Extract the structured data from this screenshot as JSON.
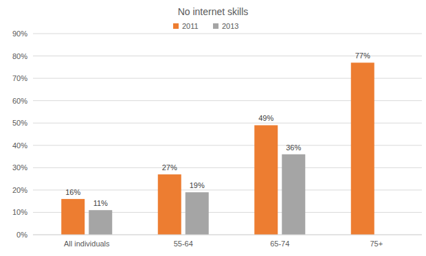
{
  "chart_data": {
    "type": "bar",
    "title": "No internet skills",
    "categories": [
      "All individuals",
      "55-64",
      "65-74",
      "75+"
    ],
    "series": [
      {
        "name": "2011",
        "color": "#ed7d31",
        "values": [
          16,
          27,
          49,
          77
        ],
        "value_labels": [
          "16%",
          "27%",
          "49%",
          "77%"
        ]
      },
      {
        "name": "2013",
        "color": "#a5a5a5",
        "values": [
          11,
          19,
          36,
          null
        ],
        "value_labels": [
          "11%",
          "19%",
          "36%",
          null
        ]
      }
    ],
    "ylim": [
      0,
      90
    ],
    "yticks": [
      {
        "value": 0,
        "label": "0%"
      },
      {
        "value": 10,
        "label": "10%"
      },
      {
        "value": 20,
        "label": "20%"
      },
      {
        "value": 30,
        "label": "30%"
      },
      {
        "value": 40,
        "label": "40%"
      },
      {
        "value": 50,
        "label": "50%"
      },
      {
        "value": 60,
        "label": "60%"
      },
      {
        "value": 70,
        "label": "70%"
      },
      {
        "value": 80,
        "label": "80%"
      },
      {
        "value": 90,
        "label": "90%"
      }
    ],
    "grid": true,
    "legend": "top",
    "data_labels": true
  }
}
